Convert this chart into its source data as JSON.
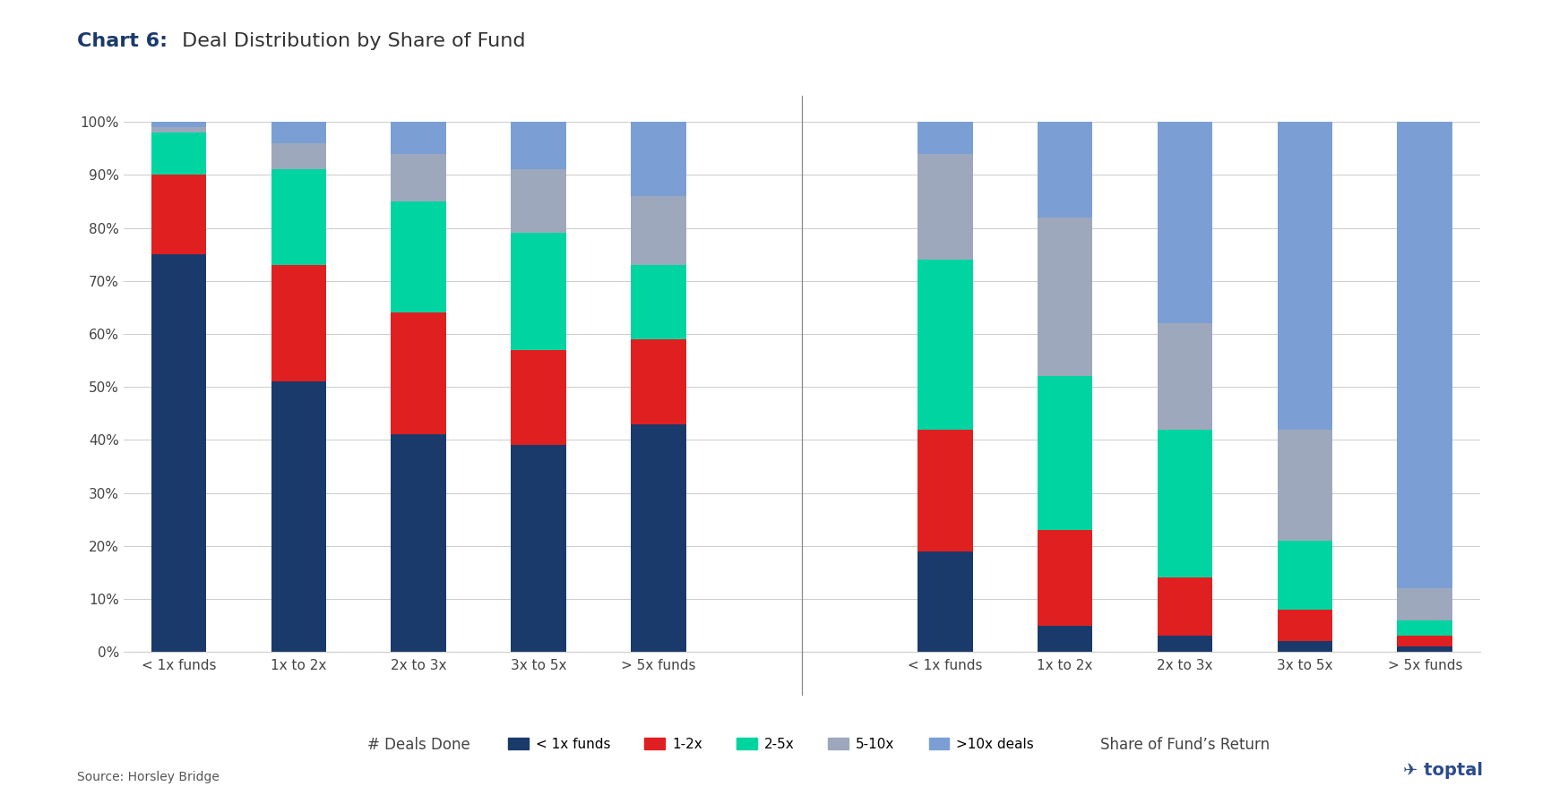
{
  "title_bold": "Chart 6:",
  "title_regular": " Deal Distribution by Share of Fund",
  "group1_label": "# Deals Done",
  "group2_label": "Share of Fund’s Return",
  "categories": [
    "< 1x funds",
    "1x to 2x",
    "2x to 3x",
    "3x to 5x",
    "> 5x funds"
  ],
  "legend_labels": [
    "< 1x funds",
    "1-2x",
    "2-5x",
    "5-10x",
    ">10x deals"
  ],
  "colors": [
    "#1a3a6b",
    "#e02020",
    "#00d4a0",
    "#9ea8bc",
    "#7b9fd4"
  ],
  "deals_done": [
    [
      75,
      15,
      8,
      1,
      1
    ],
    [
      51,
      22,
      18,
      5,
      4
    ],
    [
      41,
      23,
      21,
      9,
      6
    ],
    [
      39,
      18,
      22,
      12,
      9
    ],
    [
      43,
      16,
      14,
      13,
      14
    ]
  ],
  "share_of_return": [
    [
      19,
      23,
      32,
      20,
      6
    ],
    [
      5,
      18,
      29,
      30,
      18
    ],
    [
      3,
      11,
      28,
      20,
      38
    ],
    [
      2,
      6,
      13,
      21,
      58
    ],
    [
      1,
      2,
      3,
      6,
      88
    ]
  ],
  "source_text": "Source: Horsley Bridge",
  "background_color": "#ffffff",
  "bar_width": 0.6
}
